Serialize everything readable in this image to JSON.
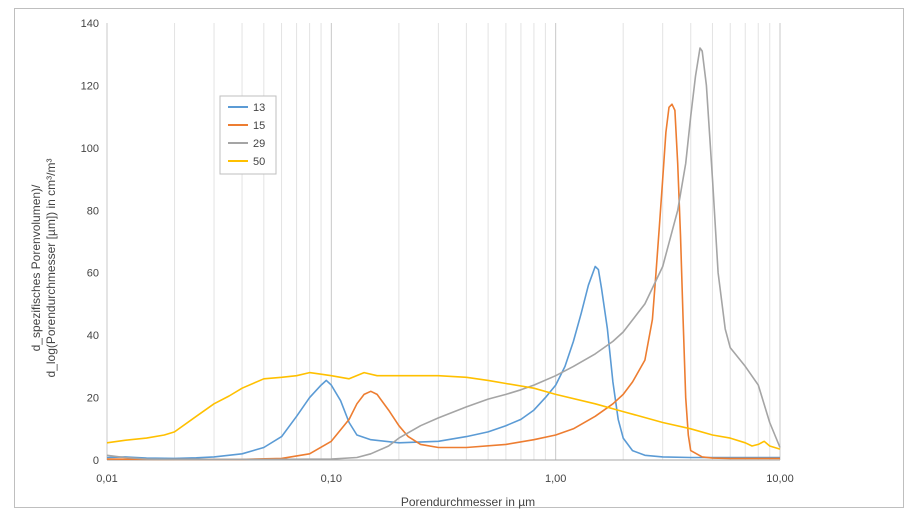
{
  "chart_data": {
    "type": "line",
    "x_scale": "log",
    "xlabel": "Porendurchmesser in µm",
    "ylabel_lines": [
      "d_spezifisches Porenvolumen)/",
      "d_log(Porendurchmesser [µm]) in cm³/m³"
    ],
    "xlim": [
      0.01,
      10
    ],
    "ylim": [
      0,
      140
    ],
    "y_ticks": [
      0,
      20,
      40,
      60,
      80,
      100,
      120,
      140
    ],
    "x_ticks": [
      {
        "value": 0.01,
        "label": "0,01"
      },
      {
        "value": 0.1,
        "label": "0,10"
      },
      {
        "value": 1,
        "label": "1,00"
      },
      {
        "value": 10,
        "label": "10,00"
      }
    ],
    "grid": "vertical log minor + major",
    "legend_position": "upper-left",
    "series": [
      {
        "name": "13",
        "color": "#5b9bd5",
        "points": [
          [
            0.01,
            0.8
          ],
          [
            0.012,
            1.0
          ],
          [
            0.015,
            0.6
          ],
          [
            0.02,
            0.5
          ],
          [
            0.025,
            0.7
          ],
          [
            0.03,
            1.0
          ],
          [
            0.04,
            2.0
          ],
          [
            0.05,
            4.0
          ],
          [
            0.06,
            7.5
          ],
          [
            0.07,
            14
          ],
          [
            0.08,
            20
          ],
          [
            0.09,
            24
          ],
          [
            0.095,
            25.5
          ],
          [
            0.1,
            24
          ],
          [
            0.11,
            19
          ],
          [
            0.12,
            12
          ],
          [
            0.13,
            8
          ],
          [
            0.15,
            6.5
          ],
          [
            0.2,
            5.5
          ],
          [
            0.3,
            6.0
          ],
          [
            0.4,
            7.5
          ],
          [
            0.5,
            9
          ],
          [
            0.6,
            11
          ],
          [
            0.7,
            13
          ],
          [
            0.8,
            16
          ],
          [
            0.9,
            20
          ],
          [
            1.0,
            24
          ],
          [
            1.1,
            30
          ],
          [
            1.2,
            38
          ],
          [
            1.3,
            47
          ],
          [
            1.4,
            56
          ],
          [
            1.5,
            62
          ],
          [
            1.55,
            61
          ],
          [
            1.6,
            55
          ],
          [
            1.7,
            42
          ],
          [
            1.8,
            25
          ],
          [
            1.9,
            13
          ],
          [
            2.0,
            7
          ],
          [
            2.2,
            3
          ],
          [
            2.5,
            1.5
          ],
          [
            3,
            1.0
          ],
          [
            4,
            0.8
          ],
          [
            5,
            0.8
          ],
          [
            6,
            0.8
          ],
          [
            8,
            0.8
          ],
          [
            10,
            0.8
          ]
        ]
      },
      {
        "name": "15",
        "color": "#ed7d31",
        "points": [
          [
            0.01,
            0.3
          ],
          [
            0.02,
            0.2
          ],
          [
            0.04,
            0.2
          ],
          [
            0.06,
            0.5
          ],
          [
            0.08,
            2
          ],
          [
            0.1,
            6
          ],
          [
            0.12,
            13
          ],
          [
            0.13,
            18
          ],
          [
            0.14,
            21
          ],
          [
            0.15,
            22
          ],
          [
            0.16,
            21
          ],
          [
            0.18,
            16
          ],
          [
            0.2,
            11
          ],
          [
            0.22,
            7.5
          ],
          [
            0.25,
            5
          ],
          [
            0.3,
            4
          ],
          [
            0.4,
            4
          ],
          [
            0.6,
            5
          ],
          [
            0.8,
            6.5
          ],
          [
            1.0,
            8
          ],
          [
            1.2,
            10
          ],
          [
            1.5,
            14
          ],
          [
            1.8,
            18
          ],
          [
            2.0,
            21
          ],
          [
            2.2,
            25
          ],
          [
            2.5,
            32
          ],
          [
            2.7,
            45
          ],
          [
            2.8,
            60
          ],
          [
            2.9,
            75
          ],
          [
            3.0,
            90
          ],
          [
            3.1,
            105
          ],
          [
            3.2,
            113
          ],
          [
            3.3,
            114
          ],
          [
            3.4,
            112
          ],
          [
            3.5,
            95
          ],
          [
            3.6,
            72
          ],
          [
            3.7,
            45
          ],
          [
            3.8,
            20
          ],
          [
            3.9,
            8
          ],
          [
            4.0,
            3
          ],
          [
            4.5,
            1
          ],
          [
            5,
            0.6
          ],
          [
            6,
            0.5
          ],
          [
            8,
            0.5
          ],
          [
            10,
            0.5
          ]
        ]
      },
      {
        "name": "29",
        "color": "#a5a5a5",
        "points": [
          [
            0.01,
            1.5
          ],
          [
            0.012,
            0.8
          ],
          [
            0.015,
            0.3
          ],
          [
            0.02,
            0.2
          ],
          [
            0.05,
            0.2
          ],
          [
            0.1,
            0.3
          ],
          [
            0.13,
            0.8
          ],
          [
            0.15,
            2
          ],
          [
            0.18,
            4.5
          ],
          [
            0.2,
            7
          ],
          [
            0.25,
            11
          ],
          [
            0.3,
            13.5
          ],
          [
            0.4,
            17
          ],
          [
            0.5,
            19.5
          ],
          [
            0.6,
            21
          ],
          [
            0.7,
            22.5
          ],
          [
            0.8,
            24
          ],
          [
            1.0,
            27
          ],
          [
            1.2,
            30
          ],
          [
            1.5,
            34
          ],
          [
            1.8,
            38
          ],
          [
            2.0,
            41
          ],
          [
            2.5,
            50
          ],
          [
            3.0,
            62
          ],
          [
            3.5,
            80
          ],
          [
            3.8,
            95
          ],
          [
            4.0,
            110
          ],
          [
            4.2,
            123
          ],
          [
            4.4,
            132
          ],
          [
            4.5,
            131
          ],
          [
            4.7,
            120
          ],
          [
            5.0,
            90
          ],
          [
            5.3,
            60
          ],
          [
            5.7,
            42
          ],
          [
            6.0,
            36
          ],
          [
            7.0,
            30
          ],
          [
            8.0,
            24
          ],
          [
            9.0,
            12
          ],
          [
            10,
            4
          ]
        ]
      },
      {
        "name": "50",
        "color": "#ffc000",
        "points": [
          [
            0.01,
            5.5
          ],
          [
            0.012,
            6.3
          ],
          [
            0.015,
            7
          ],
          [
            0.018,
            8
          ],
          [
            0.02,
            9
          ],
          [
            0.025,
            14
          ],
          [
            0.03,
            18
          ],
          [
            0.035,
            20.5
          ],
          [
            0.04,
            23
          ],
          [
            0.05,
            26
          ],
          [
            0.06,
            26.5
          ],
          [
            0.07,
            27
          ],
          [
            0.08,
            28
          ],
          [
            0.09,
            27.5
          ],
          [
            0.1,
            27
          ],
          [
            0.12,
            26
          ],
          [
            0.14,
            28
          ],
          [
            0.16,
            27
          ],
          [
            0.2,
            27
          ],
          [
            0.3,
            27
          ],
          [
            0.4,
            26.5
          ],
          [
            0.5,
            25.5
          ],
          [
            0.6,
            24.5
          ],
          [
            0.8,
            23
          ],
          [
            1.0,
            21
          ],
          [
            1.5,
            18
          ],
          [
            2.0,
            15.5
          ],
          [
            3.0,
            12
          ],
          [
            4.0,
            10
          ],
          [
            5.0,
            8
          ],
          [
            6.0,
            7
          ],
          [
            7.0,
            5.5
          ],
          [
            7.5,
            4.5
          ],
          [
            8.0,
            5
          ],
          [
            8.5,
            6
          ],
          [
            9.0,
            4.5
          ],
          [
            10,
            3.5
          ]
        ]
      }
    ]
  }
}
